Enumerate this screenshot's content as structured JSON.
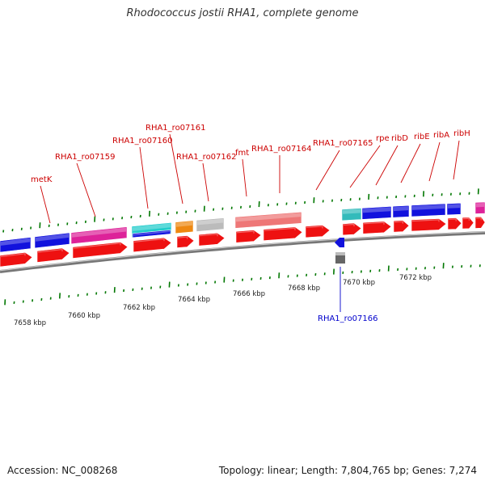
{
  "header": {
    "title": "Rhodococcus jostii RHA1, complete genome"
  },
  "footer": {
    "accession": "Accession: NC_008268",
    "summary": "Topology: linear; Length: 7,804,765 bp; Genes: 7,274"
  },
  "scale_labels": [
    "7658 kbp",
    "7660 kbp",
    "7662 kbp",
    "7664 kbp",
    "7666 kbp",
    "7668 kbp",
    "7670 kbp",
    "7672 kbp"
  ],
  "gene_labels": [
    "metK",
    "RHA1_ro07159",
    "RHA1_ro07160",
    "RHA1_ro07161",
    "RHA1_ro07162",
    "fmt",
    "RHA1_ro07164",
    "RHA1_ro07165",
    "rpe",
    "ribD",
    "ribE",
    "ribA",
    "ribH",
    "RHA1_ro07166"
  ],
  "colors": {
    "label_red": "#cc0000",
    "label_blue": "#0000cc",
    "tick_green": "#007700",
    "backbone": "#777777",
    "cds_red": "#ee1111",
    "blue": "#1111dd",
    "magenta": "#dd2299",
    "cyan": "#22cccc",
    "orange": "#ee8811",
    "gray": "#bbbbbb",
    "salmon": "#ee7777",
    "teal": "#33bbbb"
  }
}
